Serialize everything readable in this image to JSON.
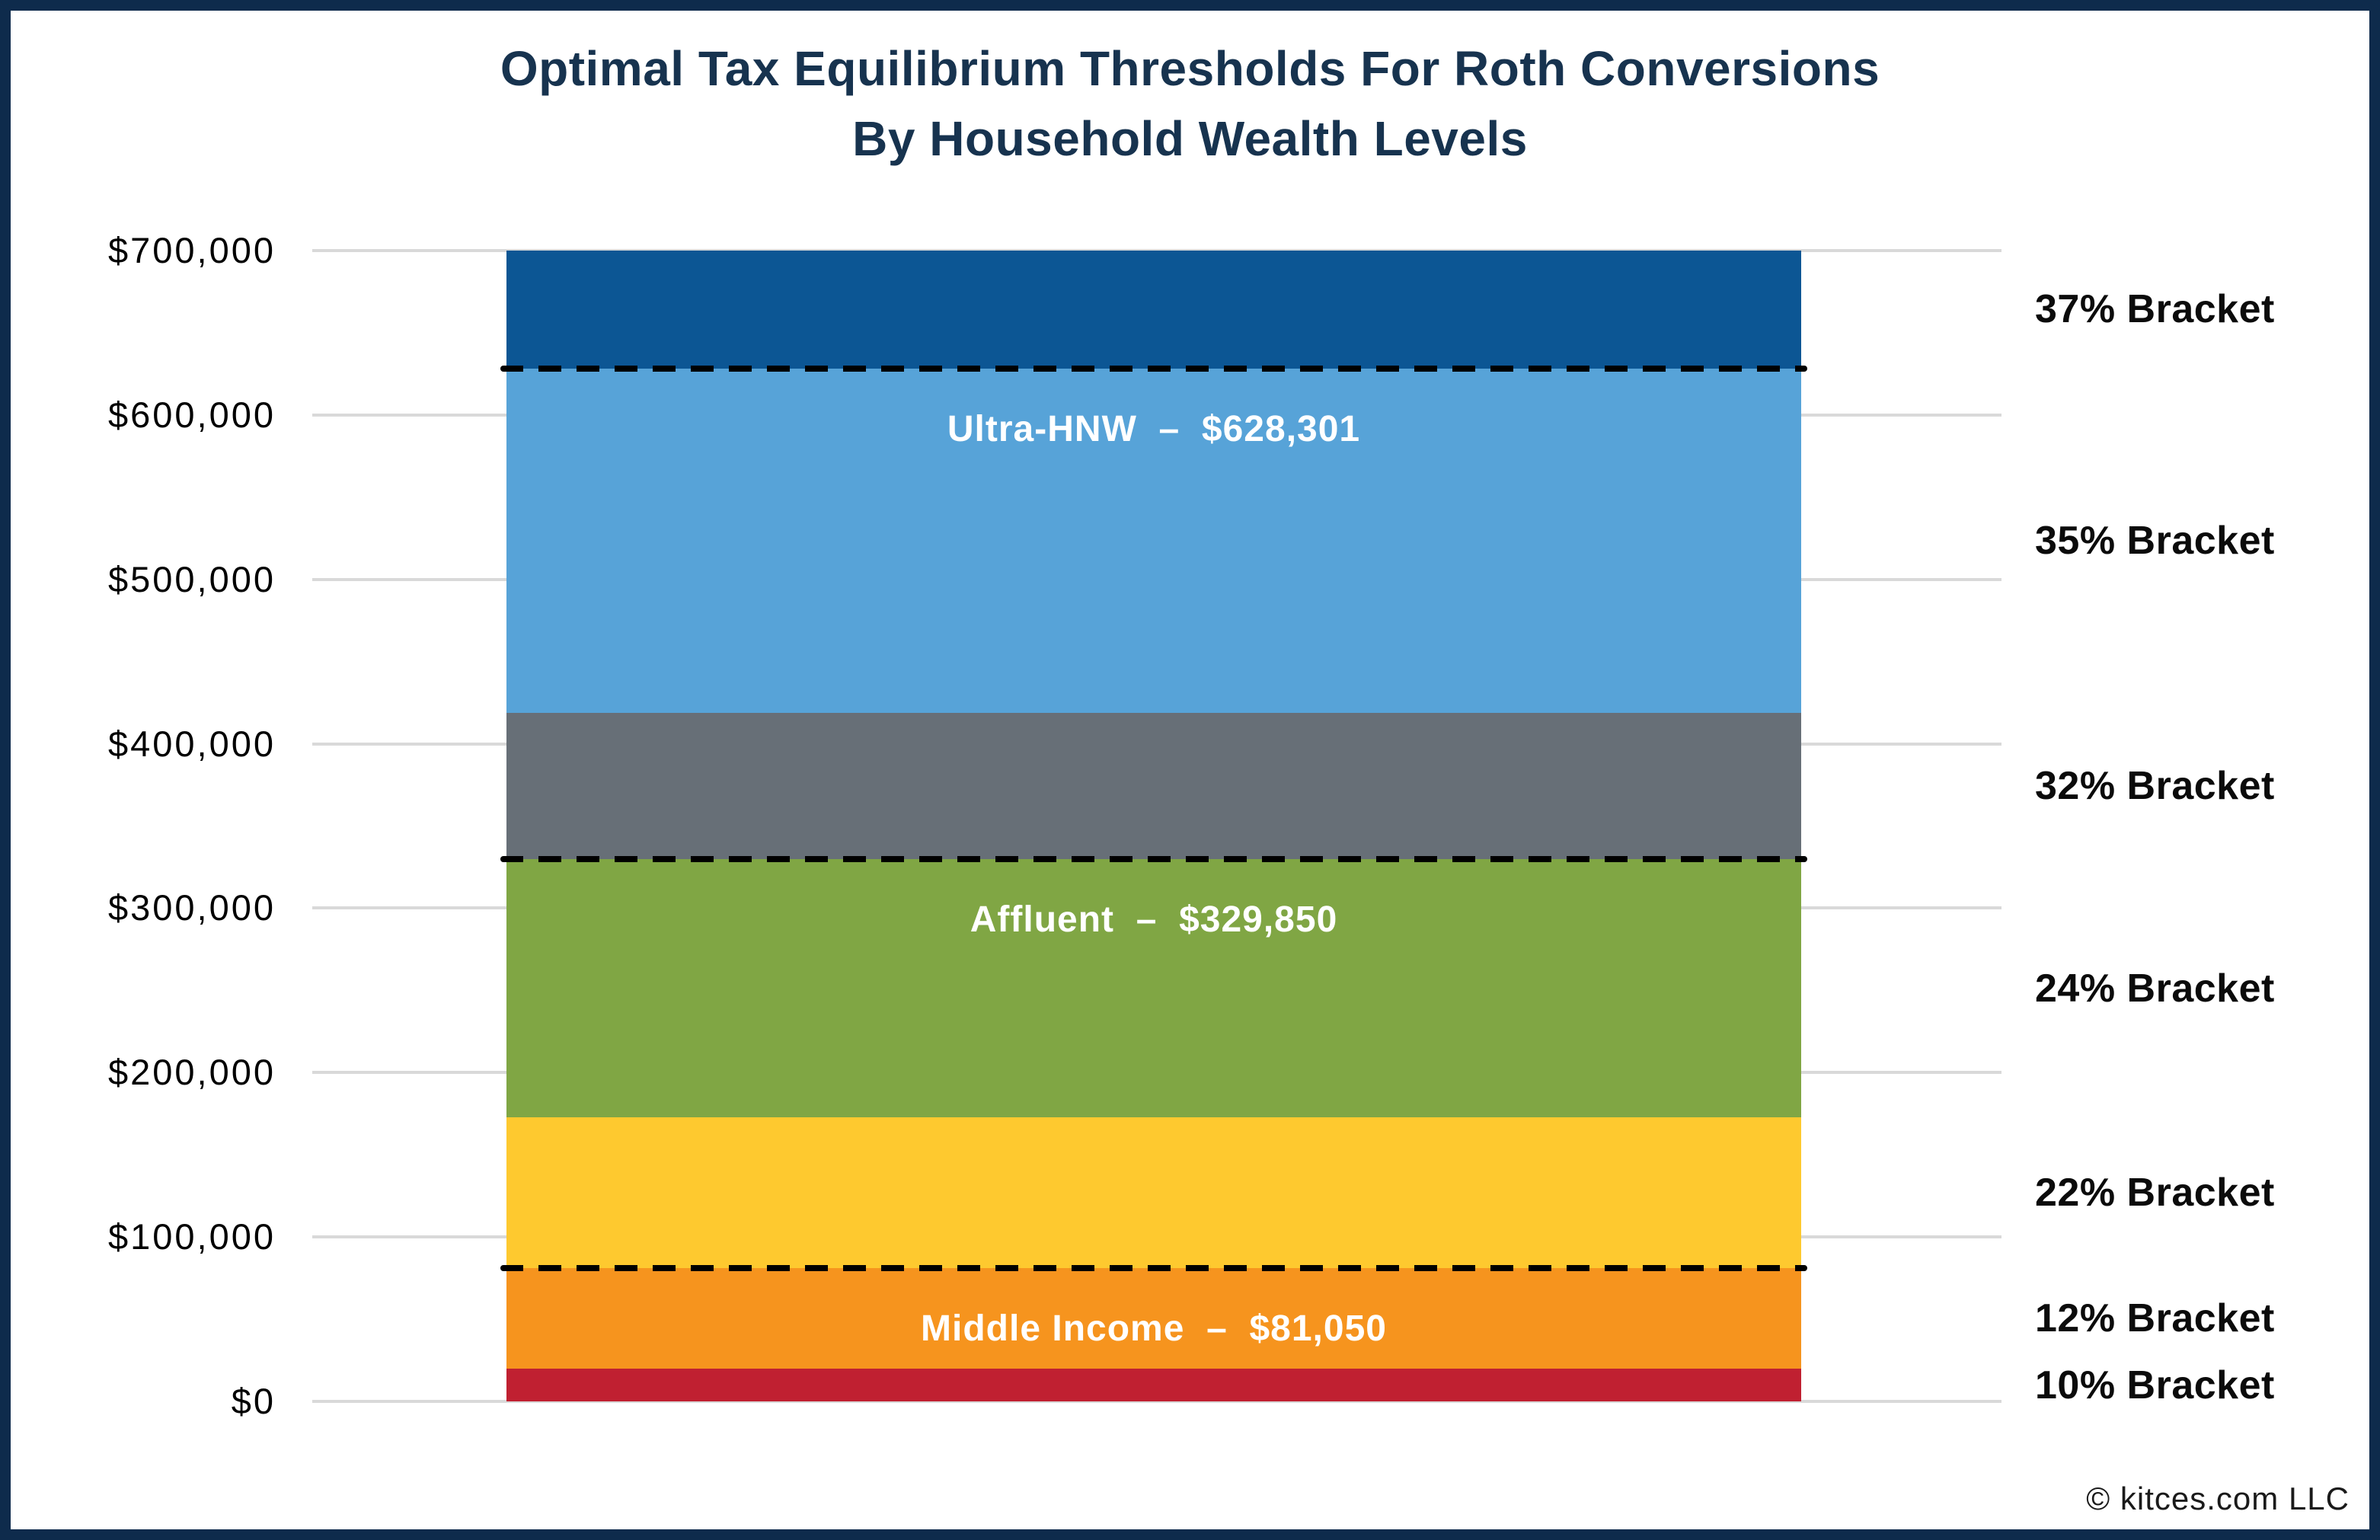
{
  "page": {
    "title_line1": "Optimal Tax Equilibrium Thresholds For Roth Conversions",
    "title_line2": "By Household Wealth Levels",
    "footer_copyright": "© kitces.com LLC",
    "colors": {
      "frame_navy": "#0E2B4C",
      "title_navy": "#17334F",
      "gridline_gray": "#D9D9D9",
      "threshold_line_black": "#000000",
      "bar_label_white": "#FFFFFF",
      "bracket_label_black": "#0B0B0B"
    }
  },
  "chart_data": {
    "type": "bar",
    "variant": "single-stacked-column",
    "title": "Optimal Tax Equilibrium Thresholds For Roth Conversions By Household Wealth Levels",
    "xlabel": "",
    "ylabel": "",
    "ylim": [
      0,
      700000
    ],
    "grid": true,
    "ytick_interval": 100000,
    "yticks": [
      {
        "value": 0,
        "label": "$0"
      },
      {
        "value": 100000,
        "label": "$100,000"
      },
      {
        "value": 200000,
        "label": "$200,000"
      },
      {
        "value": 300000,
        "label": "$300,000"
      },
      {
        "value": 400000,
        "label": "$400,000"
      },
      {
        "value": 500000,
        "label": "$500,000"
      },
      {
        "value": 600000,
        "label": "$600,000"
      },
      {
        "value": 700000,
        "label": "$700,000"
      }
    ],
    "segments": [
      {
        "rate": "10",
        "label": "10% Bracket",
        "from": 0,
        "to": 19900,
        "color": "#C02031"
      },
      {
        "rate": "12",
        "label": "12% Bracket",
        "from": 19900,
        "to": 81050,
        "color": "#F6941E"
      },
      {
        "rate": "22",
        "label": "22% Bracket",
        "from": 81050,
        "to": 172750,
        "color": "#FEC92F"
      },
      {
        "rate": "24",
        "label": "24% Bracket",
        "from": 172750,
        "to": 329850,
        "color": "#80A644"
      },
      {
        "rate": "32",
        "label": "32% Bracket",
        "from": 329850,
        "to": 418850,
        "color": "#676F77"
      },
      {
        "rate": "35",
        "label": "35% Bracket",
        "from": 418850,
        "to": 628300,
        "color": "#57A3D8"
      },
      {
        "rate": "37",
        "label": "37% Bracket",
        "from": 628300,
        "to": 700000,
        "color": "#0C5694"
      }
    ],
    "threshold_lines": [
      {
        "key": "middle-income",
        "label": "Middle Income  –  $81,050",
        "value": 81050,
        "style": "black-dashed"
      },
      {
        "key": "affluent",
        "label": "Affluent  –  $329,850",
        "value": 329850,
        "style": "black-dashed"
      },
      {
        "key": "ultra-hnw",
        "label": "Ultra-HNW  –  $628,301",
        "value": 628301,
        "style": "black-dashed"
      }
    ],
    "legend_position": "right-of-bar"
  }
}
